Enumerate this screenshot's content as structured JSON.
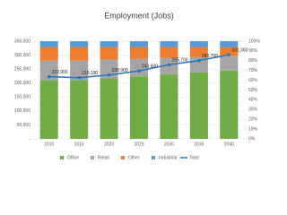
{
  "chart_data": {
    "type": "bar_line",
    "title": "Employment (Jobs)",
    "categories": [
      "2010",
      "2015",
      "2020",
      "2025",
      "2030",
      "2035",
      "2040"
    ],
    "series": [
      {
        "name": "Office",
        "color": "#70ad47",
        "axis": "y2",
        "values": [
          60,
          60,
          62,
          64,
          66,
          68,
          70
        ]
      },
      {
        "name": "Retail",
        "color": "#a5a5a5",
        "axis": "y2",
        "values": [
          20,
          20,
          19,
          18,
          17,
          16,
          15
        ]
      },
      {
        "name": "Other",
        "color": "#ed7d31",
        "axis": "y2",
        "values": [
          14,
          14,
          13,
          12,
          11,
          10,
          9
        ]
      },
      {
        "name": "Industrial",
        "color": "#5b9bd5",
        "axis": "y2",
        "values": [
          6,
          6,
          6,
          6,
          6,
          6,
          6
        ]
      },
      {
        "name": "Total",
        "color": "#2e75b6",
        "type": "line",
        "values": [
          222900,
          219100,
          228900,
          243600,
          265700,
          280700,
          301300
        ],
        "value_labels": [
          "222,900",
          "219,100",
          "228,900",
          "243,600",
          "265,700",
          "280,700",
          "301,300"
        ]
      }
    ],
    "ylim": [
      0,
      350000
    ],
    "yticks": [
      {
        "value": 0,
        "label": "-"
      },
      {
        "value": 50000,
        "label": "50,000"
      },
      {
        "value": 100000,
        "label": "100,000"
      },
      {
        "value": 150000,
        "label": "150,000"
      },
      {
        "value": 200000,
        "label": "200,000"
      },
      {
        "value": 250000,
        "label": "250,000"
      },
      {
        "value": 300000,
        "label": "300,000"
      },
      {
        "value": 350000,
        "label": "350,000"
      }
    ],
    "y2lim": [
      0,
      100
    ],
    "y2ticks": [
      {
        "value": 0,
        "label": "0%"
      },
      {
        "value": 10,
        "label": "10%"
      },
      {
        "value": 20,
        "label": "20%"
      },
      {
        "value": 30,
        "label": "30%"
      },
      {
        "value": 40,
        "label": "40%"
      },
      {
        "value": 50,
        "label": "50%"
      },
      {
        "value": 60,
        "label": "60%"
      },
      {
        "value": 70,
        "label": "70%"
      },
      {
        "value": 80,
        "label": "80%"
      },
      {
        "value": 90,
        "label": "90%"
      },
      {
        "value": 100,
        "label": "100%"
      }
    ],
    "grid": true,
    "legend": "bottom"
  }
}
